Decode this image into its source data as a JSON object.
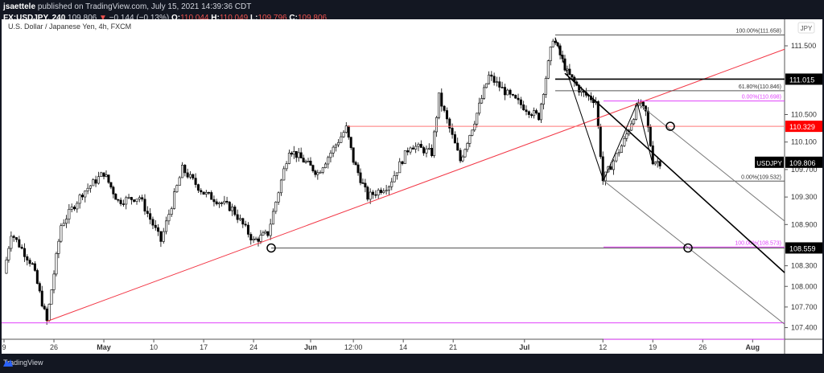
{
  "header": {
    "author": "jsaettele",
    "published": "published on TradingView.com, July 15, 2021 14:39:36 CDT",
    "symbol": "FX:USDJPY, 240",
    "last": "109.806",
    "change": "−0.144 (−0.13%)",
    "o_label": "O:",
    "o": "110.044",
    "h_label": "H:",
    "h": "110.049",
    "l_label": "L:",
    "l": "109.796",
    "c_label": "C:",
    "c": "109.806"
  },
  "chart": {
    "title": "U.S. Dollar / Japanese Yen, 4h, FXCM",
    "currency": "JPY",
    "footer": "TradingView"
  },
  "chart_data": {
    "type": "candlestick",
    "ylim": [
      107.2,
      111.9
    ],
    "y_ticks": [
      "111.500",
      "110.500",
      "110.100",
      "109.700",
      "109.300",
      "108.900",
      "108.300",
      "108.000",
      "107.700",
      "107.400"
    ],
    "x_ticks": [
      {
        "label": "9",
        "date": "2021-04-19"
      },
      {
        "label": "26",
        "date": "2021-04-26"
      },
      {
        "label": "May",
        "date": "2021-05-03"
      },
      {
        "label": "10",
        "date": "2021-05-10"
      },
      {
        "label": "17",
        "date": "2021-05-17"
      },
      {
        "label": "24",
        "date": "2021-05-24"
      },
      {
        "label": "Jun",
        "date": "2021-06-01"
      },
      {
        "label": "12:00",
        "date": "2021-06-07"
      },
      {
        "label": "14",
        "date": "2021-06-14"
      },
      {
        "label": "21",
        "date": "2021-06-21"
      },
      {
        "label": "Jul",
        "date": "2021-07-01"
      },
      {
        "label": "12",
        "date": "2021-07-12"
      },
      {
        "label": "19",
        "date": "2021-07-19"
      },
      {
        "label": "26",
        "date": "2021-07-26"
      },
      {
        "label": "Aug",
        "date": "2021-08-02"
      }
    ],
    "price_path": [
      [
        "2021-04-19",
        108.19
      ],
      [
        "2021-04-20",
        108.78
      ],
      [
        "2021-04-23",
        108.31
      ],
      [
        "2021-04-25",
        107.49
      ],
      [
        "2021-04-27",
        108.89
      ],
      [
        "2021-04-30",
        109.36
      ],
      [
        "2021-05-03",
        109.65
      ],
      [
        "2021-05-05",
        109.24
      ],
      [
        "2021-05-08",
        109.3
      ],
      [
        "2021-05-11",
        108.66
      ],
      [
        "2021-05-14",
        109.71
      ],
      [
        "2021-05-17",
        109.36
      ],
      [
        "2021-05-21",
        109.13
      ],
      [
        "2021-05-24",
        108.66
      ],
      [
        "2021-05-26",
        108.77
      ],
      [
        "2021-05-29",
        110.0
      ],
      [
        "2021-05-31",
        109.83
      ],
      [
        "2021-06-02",
        109.65
      ],
      [
        "2021-06-06",
        110.3
      ],
      [
        "2021-06-07",
        109.83
      ],
      [
        "2021-06-09",
        109.3
      ],
      [
        "2021-06-12",
        109.48
      ],
      [
        "2021-06-15",
        110.06
      ],
      [
        "2021-06-18",
        109.94
      ],
      [
        "2021-06-19",
        110.76
      ],
      [
        "2021-06-22",
        109.83
      ],
      [
        "2021-06-24",
        110.41
      ],
      [
        "2021-06-26",
        111.06
      ],
      [
        "2021-06-29",
        110.76
      ],
      [
        "2021-07-02",
        110.53
      ],
      [
        "2021-07-03",
        110.47
      ],
      [
        "2021-07-05",
        111.62
      ],
      [
        "2021-07-07",
        111.11
      ],
      [
        "2021-07-09",
        110.82
      ],
      [
        "2021-07-11",
        110.7
      ],
      [
        "2021-07-12",
        109.54
      ],
      [
        "2021-07-15",
        110.12
      ],
      [
        "2021-07-17",
        110.67
      ],
      [
        "2021-07-18",
        110.53
      ],
      [
        "2021-07-19",
        109.83
      ],
      [
        "2021-07-20",
        109.81
      ]
    ],
    "price_labels": [
      {
        "text": "111.015",
        "price": 111.015,
        "bg": "#000000"
      },
      {
        "text": "110.329",
        "price": 110.329,
        "bg": "#ff0000"
      },
      {
        "text": "109.806",
        "price": 109.806,
        "bg": "#000000",
        "tag": "USDJPY"
      },
      {
        "text": "108.559",
        "price": 108.559,
        "bg": "#000000"
      }
    ],
    "fib_labels": [
      {
        "text": "100.00%(111.658)",
        "price": 111.658,
        "color": "#333333"
      },
      {
        "text": "61.80%(110.846)",
        "price": 110.846,
        "color": "#333333"
      },
      {
        "text": "0.00%(110.698)",
        "price": 110.698,
        "color": "#e040fb"
      },
      {
        "text": "0.00%(109.532)",
        "price": 109.532,
        "color": "#333333"
      },
      {
        "text": "100.00%(108.573)",
        "price": 108.573,
        "color": "#e040fb"
      }
    ],
    "colors": {
      "up": "#ffffff",
      "down": "#000000",
      "trendline": "#f23645",
      "fib_alt": "#e040fb"
    }
  }
}
